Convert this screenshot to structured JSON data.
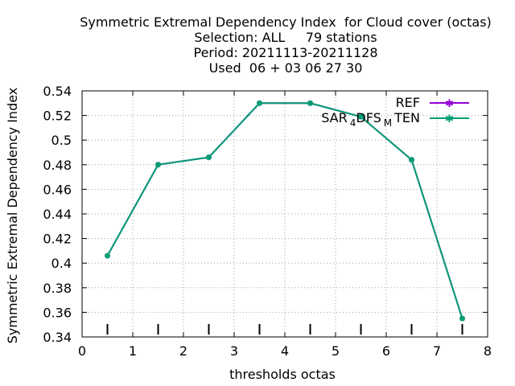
{
  "chart_data": {
    "type": "line",
    "title_lines": [
      "Symmetric Extremal Dependency Index  for Cloud cover (octas)",
      "Selection: ALL     79 stations",
      "Period: 20211113-20211128",
      "Used  06 + 03 06 27 30"
    ],
    "xlabel": "thresholds octas",
    "ylabel": "Symmetric Extremal Dependency Index",
    "xlim": [
      0,
      8
    ],
    "ylim": [
      0.34,
      0.54
    ],
    "xticks": [
      "0",
      "1",
      "2",
      "3",
      "4",
      "5",
      "6",
      "7",
      "8"
    ],
    "yticks": [
      "0.34",
      "0.36",
      "0.38",
      "0.4",
      "0.42",
      "0.44",
      "0.46",
      "0.48",
      "0.5",
      "0.52",
      "0.54"
    ],
    "grid": true,
    "legend_position": "top-right",
    "series": [
      {
        "name": "REF",
        "color": "#9400d3",
        "x": [
          0.5,
          1.5,
          2.5,
          3.5,
          4.5,
          5.5,
          6.5,
          7.5
        ],
        "values": [
          0.406,
          0.48,
          0.486,
          0.53,
          0.53,
          0.519,
          0.484,
          0.355
        ]
      },
      {
        "name": "SAR_4D FS_M TEN",
        "color": "#009e73",
        "x": [
          0.5,
          1.5,
          2.5,
          3.5,
          4.5,
          5.5,
          6.5,
          7.5
        ],
        "values": [
          0.406,
          0.48,
          0.486,
          0.53,
          0.53,
          0.519,
          0.484,
          0.355
        ]
      }
    ],
    "legend_sar": {
      "base": "SAR",
      "sub1": "4",
      "mid": "D",
      "mid2": "FS",
      "sub2": "M",
      "end": "TEN"
    }
  }
}
